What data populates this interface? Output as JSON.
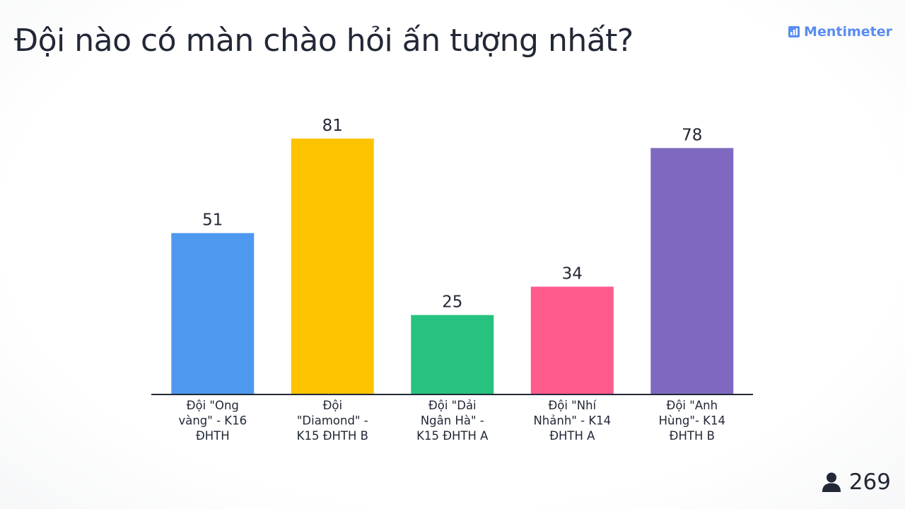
{
  "question": "Đội nào có màn chào hỏi ấn tượng nhất?",
  "brand": {
    "name": "Mentimeter",
    "icon": "bar-chart-logo-icon",
    "color": "#5a8dee"
  },
  "participants": {
    "count": "269",
    "icon": "person-icon"
  },
  "chart_data": {
    "type": "bar",
    "title": "Đội nào có màn chào hỏi ấn tượng nhất?",
    "xlabel": "",
    "ylabel": "",
    "ylim": [
      0,
      81
    ],
    "grid": false,
    "legend": "none",
    "categories": [
      "Đội \"Ong vàng\" - K16 ĐHTH",
      "Đội \"Diamond\" - K15 ĐHTH B",
      "Đội \"Dải Ngân Hà\" - K15 ĐHTH A",
      "Đội \"Nhí Nhảnh\" - K14 ĐHTH A",
      "Đội \"Anh Hùng\"- K14 ĐHTH B"
    ],
    "category_lines": [
      [
        "Đội \"Ong",
        "vàng\" - K16",
        "ĐHTH"
      ],
      [
        "Đội",
        "\"Diamond\" -",
        "K15 ĐHTH B"
      ],
      [
        "Đội \"Dải",
        "Ngân Hà\" -",
        "K15 ĐHTH A"
      ],
      [
        "Đội \"Nhí",
        "Nhảnh\" - K14",
        "ĐHTH A"
      ],
      [
        "Đội \"Anh",
        "Hùng\"- K14",
        "ĐHTH B"
      ]
    ],
    "values": [
      51,
      81,
      25,
      34,
      78
    ],
    "colors": [
      "#4f98ef",
      "#fdc300",
      "#27c27f",
      "#ff5a8c",
      "#7f69c0"
    ]
  }
}
